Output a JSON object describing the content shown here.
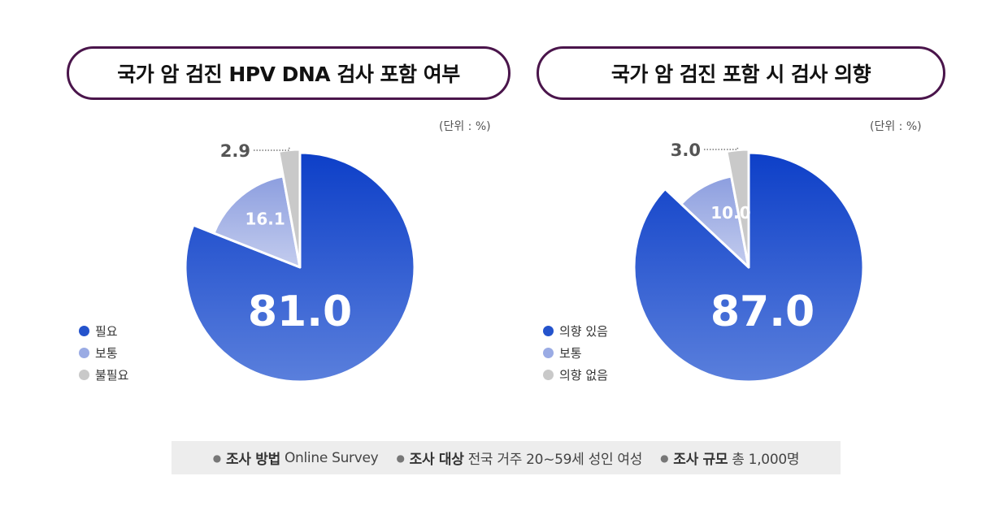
{
  "colors": {
    "need": "#2453cc",
    "normal": "#9aabe4",
    "unneeded": "#c9c9c9",
    "title_border": "#4a154b"
  },
  "chart_data": [
    {
      "type": "pie",
      "title": "국가 암 검진 HPV DNA 검사 포함 여부",
      "unit_label": "(단위 : %)",
      "slices": [
        {
          "label": "필요",
          "value": 81.0,
          "display": "81.0",
          "color": "#2453cc"
        },
        {
          "label": "보통",
          "value": 16.1,
          "display": "16.1",
          "color": "#9aabe4"
        },
        {
          "label": "불필요",
          "value": 2.9,
          "display": "2.9",
          "color": "#c9c9c9"
        }
      ]
    },
    {
      "type": "pie",
      "title": "국가 암 검진 포함 시 검사 의향",
      "unit_label": "(단위 : %)",
      "slices": [
        {
          "label": "의향 있음",
          "value": 87.0,
          "display": "87.0",
          "color": "#2453cc"
        },
        {
          "label": "보통",
          "value": 10.0,
          "display": "10.0",
          "color": "#9aabe4"
        },
        {
          "label": "의향 없음",
          "value": 3.0,
          "display": "3.0",
          "color": "#c9c9c9"
        }
      ]
    }
  ],
  "footer": {
    "method_key": "조사 방법",
    "method_val": "Online Survey",
    "target_key": "조사 대상",
    "target_val": "전국 거주 20~59세 성인 여성",
    "scale_key": "조사 규모",
    "scale_val": "총 1,000명"
  }
}
